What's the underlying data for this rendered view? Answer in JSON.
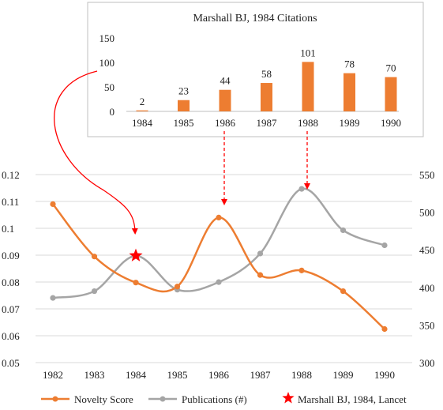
{
  "chart_data": [
    {
      "type": "bar",
      "title": "Marshall BJ, 1984 Citations",
      "categories": [
        "1984",
        "1985",
        "1986",
        "1987",
        "1988",
        "1989",
        "1990"
      ],
      "values": [
        2,
        23,
        44,
        58,
        101,
        78,
        70
      ],
      "ylim": [
        0,
        150
      ],
      "yticks": [
        0,
        50,
        100,
        150
      ],
      "grid": false,
      "bar_color": "#ED7D31"
    },
    {
      "type": "line",
      "x": [
        "1982",
        "1983",
        "1984",
        "1985",
        "1986",
        "1987",
        "1988",
        "1989",
        "1990"
      ],
      "series": [
        {
          "name": "Novelty Score",
          "axis": "left",
          "color": "#ED7D31",
          "values": [
            0.109,
            0.0895,
            0.0798,
            0.0783,
            0.104,
            0.0826,
            0.0843,
            0.0766,
            0.0625
          ]
        },
        {
          "name": "Publications (#)",
          "axis": "right",
          "color": "#A5A5A5",
          "values": [
            386,
            395,
            442,
            397,
            407,
            445,
            531,
            476,
            456
          ]
        }
      ],
      "left_axis": {
        "ticks": [
          "0.05",
          "0.06",
          "0.07",
          "0.08",
          "0.09",
          "0.1",
          "0.11",
          "0.12"
        ],
        "ylim": [
          0.05,
          0.12
        ]
      },
      "right_axis": {
        "ticks": [
          "300",
          "350",
          "400",
          "450",
          "500",
          "550"
        ],
        "ylim": [
          300,
          550
        ]
      },
      "grid": "horizontal",
      "legend_position": "bottom",
      "marker": {
        "label": "Marshall BJ, 1984, Lancet",
        "x": "1984",
        "y": 0.091,
        "color": "#FF0000"
      },
      "annotations": [
        {
          "from": "inset-100",
          "to": "1984"
        },
        {
          "from": "1986",
          "to": "1986"
        },
        {
          "from": "1988",
          "to": "1988"
        }
      ]
    }
  ]
}
